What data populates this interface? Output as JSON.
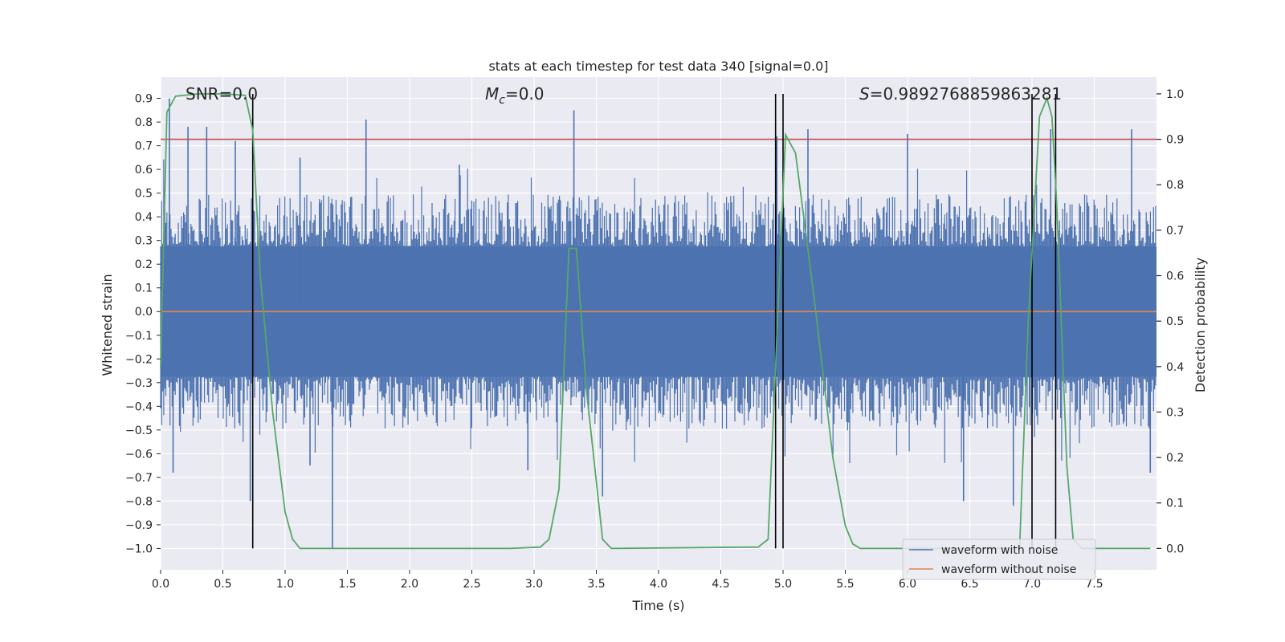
{
  "chart_data": {
    "type": "line",
    "title": "stats at each timestep for test data 340 [signal=0.0]",
    "xlabel": "Time (s)",
    "ylabel": "Whitened strain",
    "y2label": "Detection probability",
    "xlim": [
      0.0,
      8.0
    ],
    "ylim": [
      -1.09,
      0.99
    ],
    "y2lim": [
      -0.047,
      1.037
    ],
    "xticks": [
      "0.0",
      "0.5",
      "1.0",
      "1.5",
      "2.0",
      "2.5",
      "3.0",
      "3.5",
      "4.0",
      "4.5",
      "5.0",
      "5.5",
      "6.0",
      "6.5",
      "7.0",
      "7.5"
    ],
    "yticks": [
      "0.9",
      "0.8",
      "0.7",
      "0.6",
      "0.5",
      "0.4",
      "0.3",
      "0.2",
      "0.1",
      "0.0",
      "−0.1",
      "−0.2",
      "−0.3",
      "−0.4",
      "−0.5",
      "−0.6",
      "−0.7",
      "−0.8",
      "−0.9",
      "−1.0"
    ],
    "y2ticks": [
      "1.0",
      "0.9",
      "0.8",
      "0.7",
      "0.6",
      "0.5",
      "0.4",
      "0.3",
      "0.2",
      "0.1",
      "0.0"
    ],
    "annotations": {
      "snr": "SNR=0.0",
      "mc_symbol": "M",
      "mc_sub": "c",
      "mc_value": "=0.0",
      "s_symbol": "S",
      "s_value": "=0.9892768859863281"
    },
    "legend": {
      "position": "bottom-right",
      "entries": [
        "waveform with noise",
        "waveform without noise"
      ]
    },
    "colors": {
      "noise": "#4c72b0",
      "clean": "#dd8452",
      "probability": "#55a868",
      "threshold": "#c44e52",
      "boundary": "#000000",
      "plot_bg": "#eaeaf2",
      "grid": "#ffffff"
    },
    "threshold_probability": 0.9,
    "clean_waveform": {
      "x": [
        0.0,
        8.0
      ],
      "y": [
        0.0,
        0.0
      ]
    },
    "noise_envelope": {
      "lower": -0.5,
      "upper": 0.5
    },
    "noise_spikes": [
      {
        "x": 0.07,
        "y": 0.9
      },
      {
        "x": 0.22,
        "y": 0.78
      },
      {
        "x": 0.37,
        "y": 0.78
      },
      {
        "x": 0.6,
        "y": 0.72
      },
      {
        "x": 1.12,
        "y": 0.65
      },
      {
        "x": 1.65,
        "y": 0.81
      },
      {
        "x": 2.4,
        "y": 0.62
      },
      {
        "x": 3.32,
        "y": 0.85
      },
      {
        "x": 4.95,
        "y": 0.74
      },
      {
        "x": 5.2,
        "y": 0.77
      },
      {
        "x": 6.0,
        "y": 0.75
      },
      {
        "x": 7.15,
        "y": 0.77
      },
      {
        "x": 7.8,
        "y": 0.77
      },
      {
        "x": 0.1,
        "y": -0.68
      },
      {
        "x": 0.72,
        "y": -0.8
      },
      {
        "x": 1.38,
        "y": -1.0
      },
      {
        "x": 1.2,
        "y": -0.65
      },
      {
        "x": 2.95,
        "y": -0.67
      },
      {
        "x": 3.55,
        "y": -0.78
      },
      {
        "x": 6.45,
        "y": -0.8
      },
      {
        "x": 6.85,
        "y": -0.82
      },
      {
        "x": 7.95,
        "y": -0.68
      }
    ],
    "detection_probability": {
      "x": [
        0.0,
        0.05,
        0.12,
        0.3,
        0.5,
        0.68,
        0.74,
        0.8,
        0.9,
        1.0,
        1.06,
        1.12,
        2.8,
        3.05,
        3.12,
        3.2,
        3.28,
        3.34,
        3.42,
        3.55,
        3.62,
        4.8,
        4.88,
        4.94,
        5.02,
        5.06,
        5.1,
        5.25,
        5.4,
        5.5,
        5.56,
        5.62,
        6.9,
        6.97,
        7.06,
        7.12,
        7.16,
        7.2,
        7.28,
        7.33,
        7.4,
        7.95
      ],
      "y": [
        0.4,
        0.96,
        0.995,
        1.0,
        1.0,
        0.997,
        0.92,
        0.6,
        0.3,
        0.08,
        0.02,
        0.0,
        0.0,
        0.003,
        0.02,
        0.13,
        0.66,
        0.66,
        0.35,
        0.02,
        0.0,
        0.003,
        0.02,
        0.4,
        0.91,
        0.89,
        0.87,
        0.55,
        0.2,
        0.05,
        0.01,
        0.0,
        0.0,
        0.5,
        0.95,
        0.99,
        0.95,
        0.75,
        0.18,
        0.02,
        0.0,
        0.0
      ]
    },
    "boundaries": [
      0.74,
      4.94,
      5.0,
      7.0,
      7.19
    ],
    "secondary_gridlines": [
      0.6,
      0.5,
      0.4,
      0.3,
      0.7
    ]
  }
}
